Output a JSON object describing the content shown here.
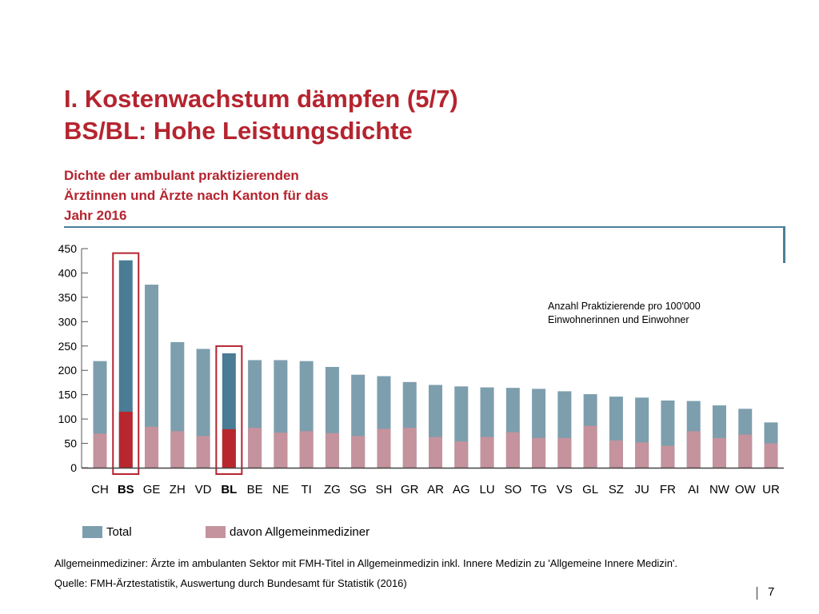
{
  "header": {
    "title_line1": "I. Kostenwachstum dämpfen (5/7)",
    "title_line2": "BS/BL: Hohe Leistungsdichte"
  },
  "subtitle": {
    "line1": "Dichte der ambulant praktizierenden",
    "line2": "Ärztinnen und Ärzte nach Kanton für das",
    "line3": "Jahr 2016"
  },
  "annotation": {
    "line1": "Anzahl Praktizierende pro 100'000",
    "line2": "Einwohnerinnen und Einwohner"
  },
  "legend": {
    "total": "Total",
    "gp": "davon Allgemeinmediziner"
  },
  "footnote": "Allgemeinmediziner: Ärzte im ambulanten Sektor mit FMH-Titel in Allgemeinmedizin inkl. Innere Medizin zu 'Allgemeine Innere Medizin'.",
  "source": "Quelle: FMH-Ärztestatistik, Auswertung durch Bundesamt für Statistik (2016)",
  "page_number": "7",
  "colors": {
    "title_red": "#b5242f",
    "total_bar": "#7d9ead",
    "total_bar_highlight": "#4a7c95",
    "gp_bar": "#c4939e",
    "gp_bar_highlight": "#b9272e",
    "highlight_box": "#b5242f"
  },
  "chart_data": {
    "type": "bar",
    "stacked_overlay": true,
    "categories": [
      "CH",
      "BS",
      "GE",
      "ZH",
      "VD",
      "BL",
      "BE",
      "NE",
      "TI",
      "ZG",
      "SG",
      "SH",
      "GR",
      "AR",
      "AG",
      "LU",
      "SO",
      "TG",
      "VS",
      "GL",
      "SZ",
      "JU",
      "FR",
      "AI",
      "NW",
      "OW",
      "UR"
    ],
    "highlighted": [
      "BS",
      "BL"
    ],
    "series": [
      {
        "name": "Total",
        "values": [
          219,
          426,
          376,
          258,
          244,
          235,
          221,
          221,
          219,
          207,
          191,
          188,
          176,
          170,
          167,
          165,
          164,
          162,
          157,
          151,
          146,
          144,
          138,
          137,
          128,
          121,
          93
        ]
      },
      {
        "name": "davon Allgemeinmediziner",
        "values": [
          70,
          115,
          84,
          75,
          65,
          79,
          82,
          72,
          75,
          71,
          65,
          80,
          82,
          63,
          54,
          63,
          73,
          61,
          61,
          86,
          56,
          52,
          45,
          75,
          61,
          68,
          50
        ]
      }
    ],
    "ylim": [
      0,
      450
    ],
    "yticks": [
      0,
      50,
      100,
      150,
      200,
      250,
      300,
      350,
      400,
      450
    ],
    "grid": false,
    "legend_position": "bottom-left"
  }
}
